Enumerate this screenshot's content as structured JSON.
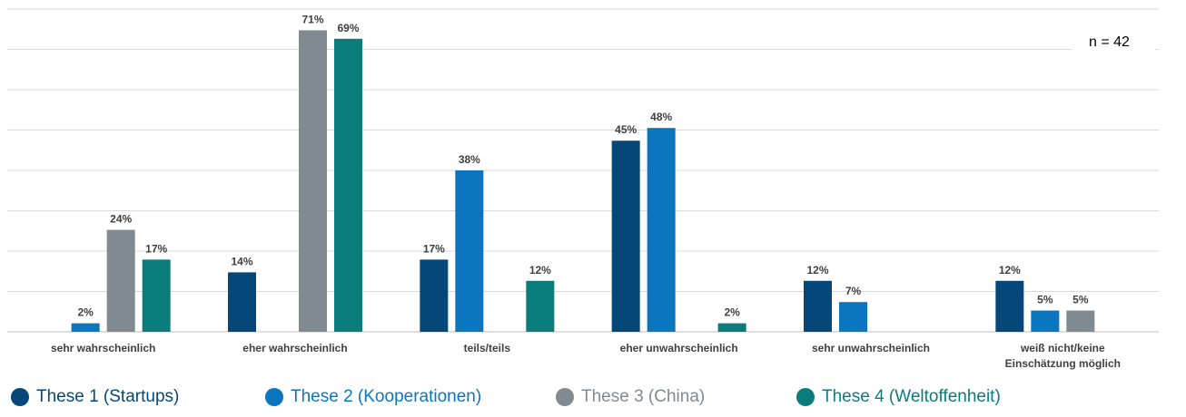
{
  "chart_data": {
    "type": "bar",
    "categories": [
      [
        "sehr wahrscheinlich"
      ],
      [
        "eher wahrscheinlich"
      ],
      [
        "teils/teils"
      ],
      [
        "eher unwahrscheinlich"
      ],
      [
        "sehr unwahrscheinlich"
      ],
      [
        "weiß nicht/keine",
        "Einschätzung möglich"
      ]
    ],
    "series": [
      {
        "name": "These 1 (Startups)",
        "color": "#06477a",
        "values": [
          null,
          14,
          17,
          45,
          12,
          12
        ]
      },
      {
        "name": "These 2 (Kooperationen)",
        "color": "#0a76bf",
        "values": [
          2,
          null,
          38,
          48,
          7,
          5
        ]
      },
      {
        "name": "These 3 (China)",
        "color": "#7f8a91",
        "values": [
          24,
          71,
          null,
          null,
          null,
          5
        ]
      },
      {
        "name": "These 4 (Weltoffenheit)",
        "color": "#097c7b",
        "values": [
          17,
          69,
          12,
          2,
          null,
          null
        ]
      }
    ],
    "value_suffix": "%",
    "ylim": [
      0,
      76
    ],
    "gridlines": 8,
    "legend_position": "bottom",
    "annotation": "n = 42"
  }
}
